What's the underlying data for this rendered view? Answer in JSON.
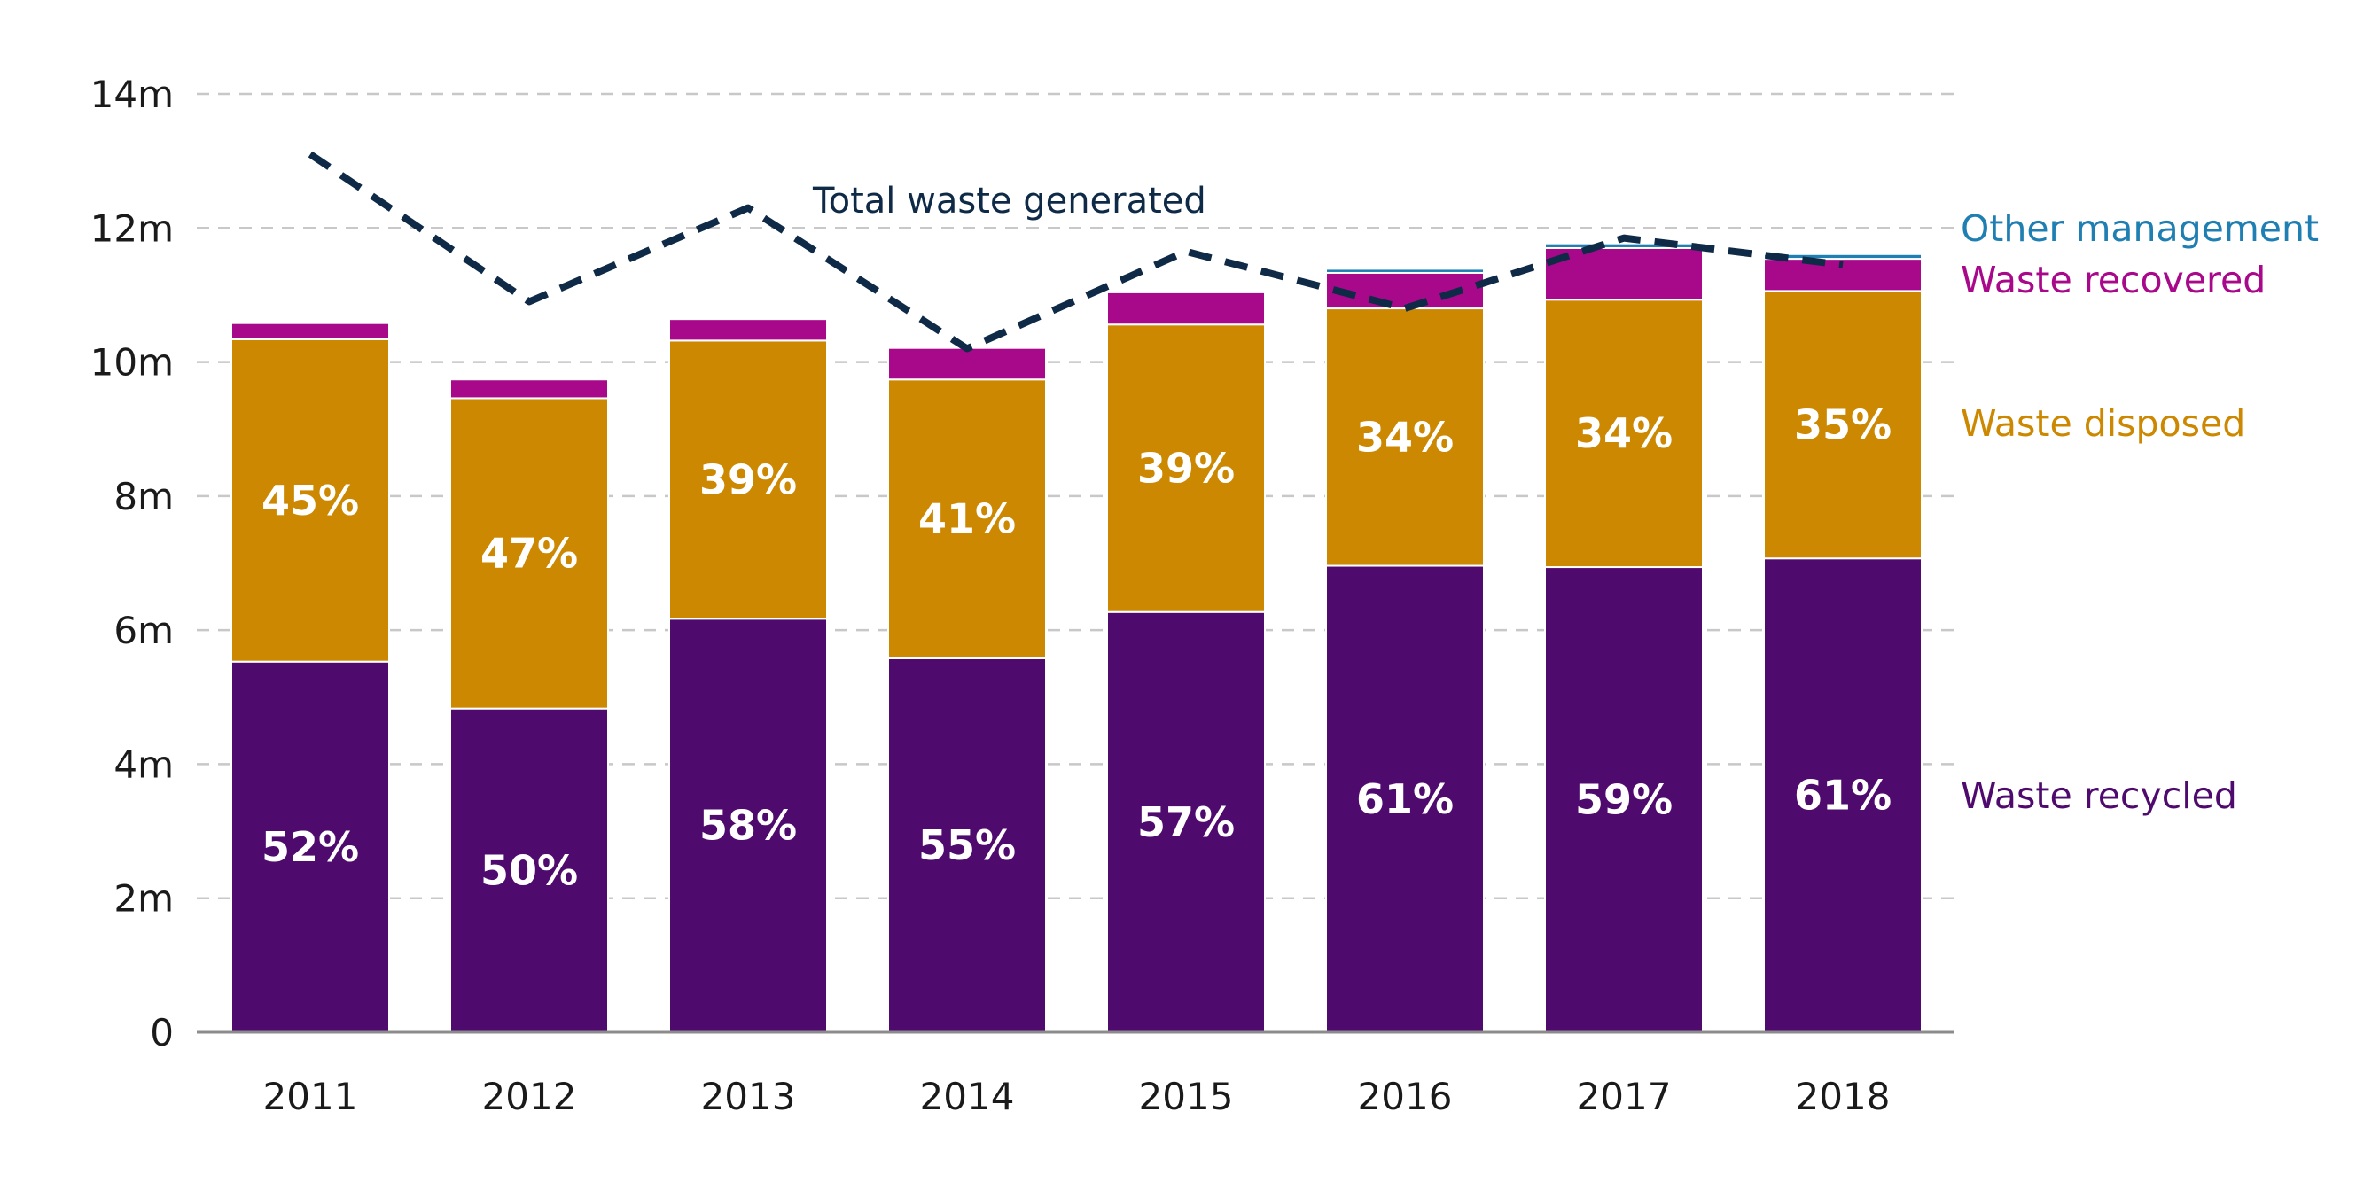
{
  "chart_data": {
    "type": "bar",
    "stacked": true,
    "categories": [
      "2011",
      "2012",
      "2013",
      "2014",
      "2015",
      "2016",
      "2017",
      "2018"
    ],
    "ylim": [
      0,
      14
    ],
    "y_ticks": [
      0,
      2,
      4,
      6,
      8,
      10,
      12,
      14
    ],
    "y_tick_labels": [
      "0",
      "2m",
      "4m",
      "6m",
      "8m",
      "10m",
      "12m",
      "14m"
    ],
    "grid": "horizontal dashed",
    "series": [
      {
        "name": "Waste recycled",
        "color": "#4f0a6e",
        "values": [
          5.53,
          4.83,
          6.17,
          5.58,
          6.27,
          6.96,
          6.94,
          7.07
        ],
        "labels": [
          "52%",
          "50%",
          "58%",
          "55%",
          "57%",
          "61%",
          "59%",
          "61%"
        ]
      },
      {
        "name": "Waste disposed",
        "color": "#cc8800",
        "values": [
          4.81,
          4.63,
          4.15,
          4.16,
          4.29,
          3.84,
          3.99,
          3.99
        ],
        "labels": [
          "45%",
          "47%",
          "39%",
          "41%",
          "39%",
          "34%",
          "34%",
          "35%"
        ]
      },
      {
        "name": "Waste recovered",
        "color": "#a8088a",
        "values": [
          0.24,
          0.28,
          0.32,
          0.47,
          0.48,
          0.53,
          0.77,
          0.48
        ],
        "labels": []
      },
      {
        "name": "Other management",
        "color": "#1f7fb3",
        "values": [
          0,
          0,
          0,
          0,
          0,
          0.06,
          0.07,
          0.07
        ],
        "labels": []
      }
    ],
    "line": {
      "name": "Total waste generated",
      "color": "#0e2a47",
      "style": "dashed",
      "values": [
        13.1,
        10.9,
        12.3,
        10.2,
        11.65,
        10.8,
        11.85,
        11.45
      ]
    }
  }
}
